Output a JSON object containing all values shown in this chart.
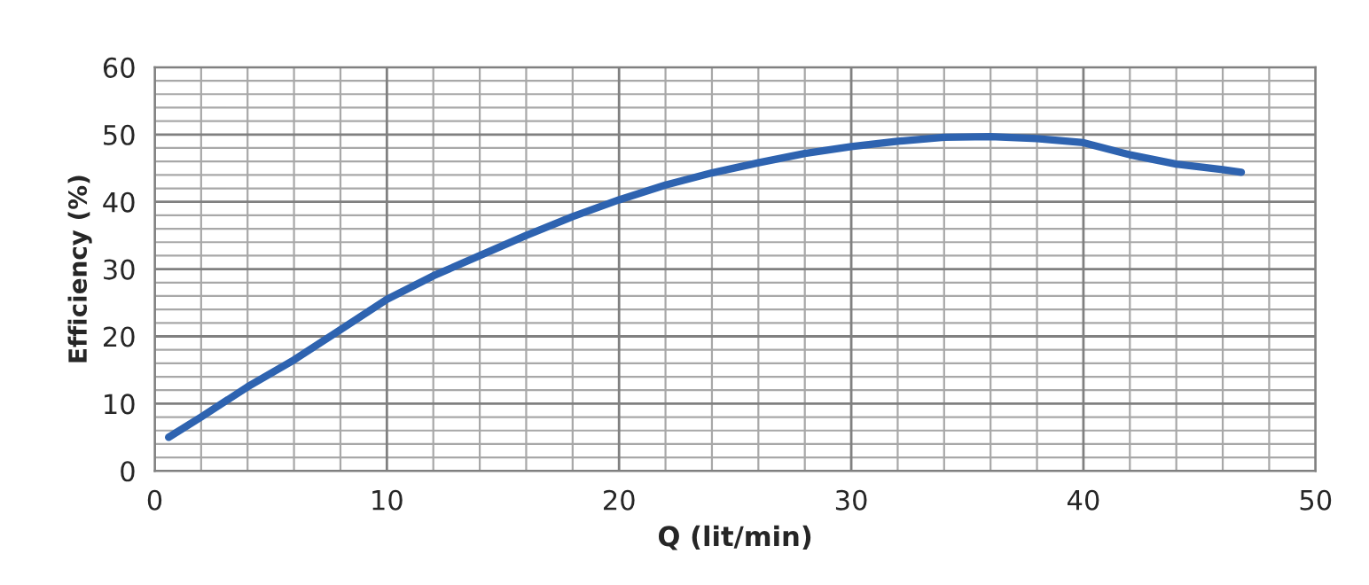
{
  "chart_data": {
    "type": "line",
    "xlabel": "Q (lit/min)",
    "ylabel": "Efficiency (%)",
    "x": [
      0.6,
      2,
      4,
      6,
      8,
      10,
      12,
      14,
      16,
      18,
      20,
      22,
      24,
      26,
      28,
      30,
      32,
      34,
      36,
      38,
      40,
      42,
      44,
      46,
      46.8
    ],
    "series": [
      {
        "color": "#2e63b0",
        "values": [
          5,
          8,
          12.5,
          16.5,
          21,
          25.5,
          29,
          32,
          35,
          37.8,
          40.3,
          42.5,
          44.3,
          45.8,
          47.2,
          48.2,
          49,
          49.6,
          49.7,
          49.4,
          48.8,
          47,
          45.6,
          44.8,
          44.4
        ]
      }
    ],
    "xlim": [
      0,
      50
    ],
    "xticks": [
      0,
      10,
      20,
      30,
      40,
      50
    ],
    "ylim": [
      0,
      60
    ],
    "yticks": [
      0,
      10,
      20,
      30,
      40,
      50,
      60
    ],
    "grid": true,
    "marker": "none",
    "line_style": "solid",
    "legend": false
  }
}
